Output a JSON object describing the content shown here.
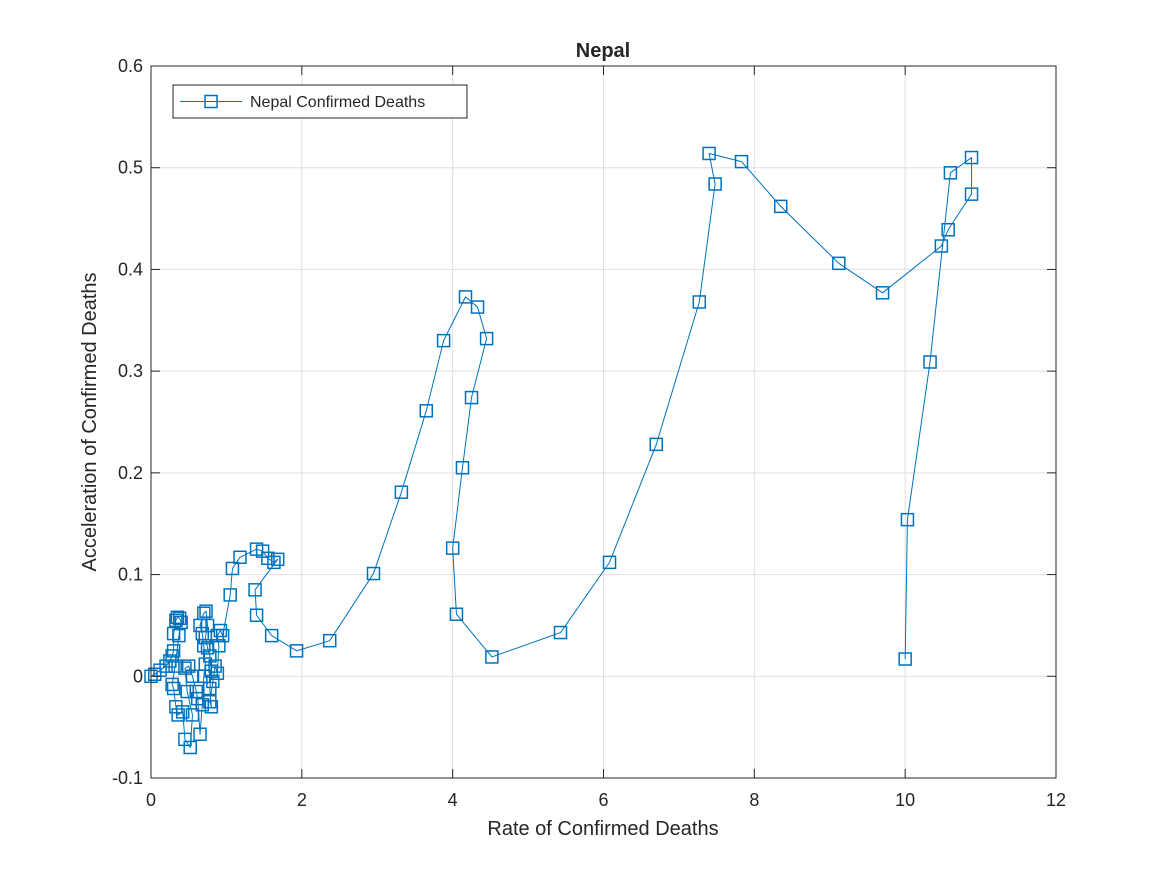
{
  "chart_data": {
    "type": "line",
    "title": "Nepal",
    "xlabel": "Rate of Confirmed Deaths",
    "ylabel": "Acceleration of Confirmed Deaths",
    "xlim": [
      0,
      12
    ],
    "ylim": [
      -0.1,
      0.6
    ],
    "xticks": [
      0,
      2,
      4,
      6,
      8,
      10,
      12
    ],
    "yticks": [
      -0.1,
      0,
      0.1,
      0.2,
      0.3,
      0.4,
      0.5,
      0.6
    ],
    "xtick_labels": [
      "0",
      "2",
      "4",
      "6",
      "8",
      "10",
      "12"
    ],
    "ytick_labels": [
      "-0.1",
      "0",
      "0.1",
      "0.2",
      "0.3",
      "0.4",
      "0.5",
      "0.6"
    ],
    "grid": true,
    "legend_position": "top-left",
    "marker": "square",
    "color": "#0072BD",
    "series": [
      {
        "name": "Nepal Confirmed Deaths",
        "points": [
          [
            0.0,
            0.0
          ],
          [
            0.05,
            0.002
          ],
          [
            0.12,
            0.006
          ],
          [
            0.2,
            0.01
          ],
          [
            0.25,
            0.015
          ],
          [
            0.28,
            0.02
          ],
          [
            0.3,
            0.025
          ],
          [
            0.3,
            0.042
          ],
          [
            0.33,
            0.055
          ],
          [
            0.35,
            0.058
          ],
          [
            0.38,
            0.057
          ],
          [
            0.4,
            0.053
          ],
          [
            0.37,
            0.04
          ],
          [
            0.32,
            0.01
          ],
          [
            0.28,
            -0.008
          ],
          [
            0.3,
            -0.012
          ],
          [
            0.33,
            -0.03
          ],
          [
            0.36,
            -0.038
          ],
          [
            0.42,
            -0.035
          ],
          [
            0.45,
            -0.062
          ],
          [
            0.52,
            -0.07
          ],
          [
            0.55,
            -0.038
          ],
          [
            0.48,
            -0.015
          ],
          [
            0.45,
            0.008
          ],
          [
            0.5,
            0.01
          ],
          [
            0.55,
            0.0
          ],
          [
            0.6,
            -0.015
          ],
          [
            0.62,
            -0.022
          ],
          [
            0.65,
            -0.057
          ],
          [
            0.68,
            -0.028
          ],
          [
            0.7,
            0.0
          ],
          [
            0.72,
            0.012
          ],
          [
            0.7,
            0.03
          ],
          [
            0.68,
            0.042
          ],
          [
            0.65,
            0.05
          ],
          [
            0.7,
            0.062
          ],
          [
            0.73,
            0.064
          ],
          [
            0.75,
            0.05
          ],
          [
            0.72,
            0.038
          ],
          [
            0.75,
            0.028
          ],
          [
            0.78,
            0.02
          ],
          [
            0.8,
            0.005
          ],
          [
            0.78,
            -0.012
          ],
          [
            0.8,
            -0.03
          ],
          [
            0.78,
            -0.025
          ],
          [
            0.82,
            -0.005
          ],
          [
            0.85,
            0.01
          ],
          [
            0.88,
            0.003
          ],
          [
            0.9,
            0.03
          ],
          [
            0.88,
            0.04
          ],
          [
            0.92,
            0.045
          ],
          [
            0.95,
            0.04
          ],
          [
            1.05,
            0.08
          ],
          [
            1.08,
            0.106
          ],
          [
            1.18,
            0.117
          ],
          [
            1.4,
            0.125
          ],
          [
            1.48,
            0.123
          ],
          [
            1.55,
            0.116
          ],
          [
            1.63,
            0.112
          ],
          [
            1.68,
            0.115
          ],
          [
            1.38,
            0.085
          ],
          [
            1.4,
            0.06
          ],
          [
            1.6,
            0.04
          ],
          [
            1.93,
            0.025
          ],
          [
            2.37,
            0.035
          ],
          [
            2.95,
            0.101
          ],
          [
            3.32,
            0.181
          ],
          [
            3.65,
            0.261
          ],
          [
            3.88,
            0.33
          ],
          [
            4.17,
            0.373
          ],
          [
            4.33,
            0.363
          ],
          [
            4.45,
            0.332
          ],
          [
            4.25,
            0.274
          ],
          [
            4.13,
            0.205
          ],
          [
            4.0,
            0.126
          ],
          [
            4.05,
            0.061
          ],
          [
            4.52,
            0.019
          ],
          [
            5.43,
            0.043
          ],
          [
            6.08,
            0.112
          ],
          [
            6.7,
            0.228
          ],
          [
            7.27,
            0.368
          ],
          [
            7.48,
            0.484
          ],
          [
            7.4,
            0.514
          ],
          [
            7.83,
            0.506
          ],
          [
            8.35,
            0.462
          ],
          [
            9.12,
            0.406
          ],
          [
            9.7,
            0.377
          ],
          [
            10.48,
            0.423
          ],
          [
            10.57,
            0.439
          ],
          [
            10.88,
            0.474
          ],
          [
            10.88,
            0.51
          ],
          [
            10.6,
            0.495
          ],
          [
            10.33,
            0.309
          ],
          [
            10.03,
            0.154
          ],
          [
            10.0,
            0.017
          ]
        ]
      }
    ]
  }
}
